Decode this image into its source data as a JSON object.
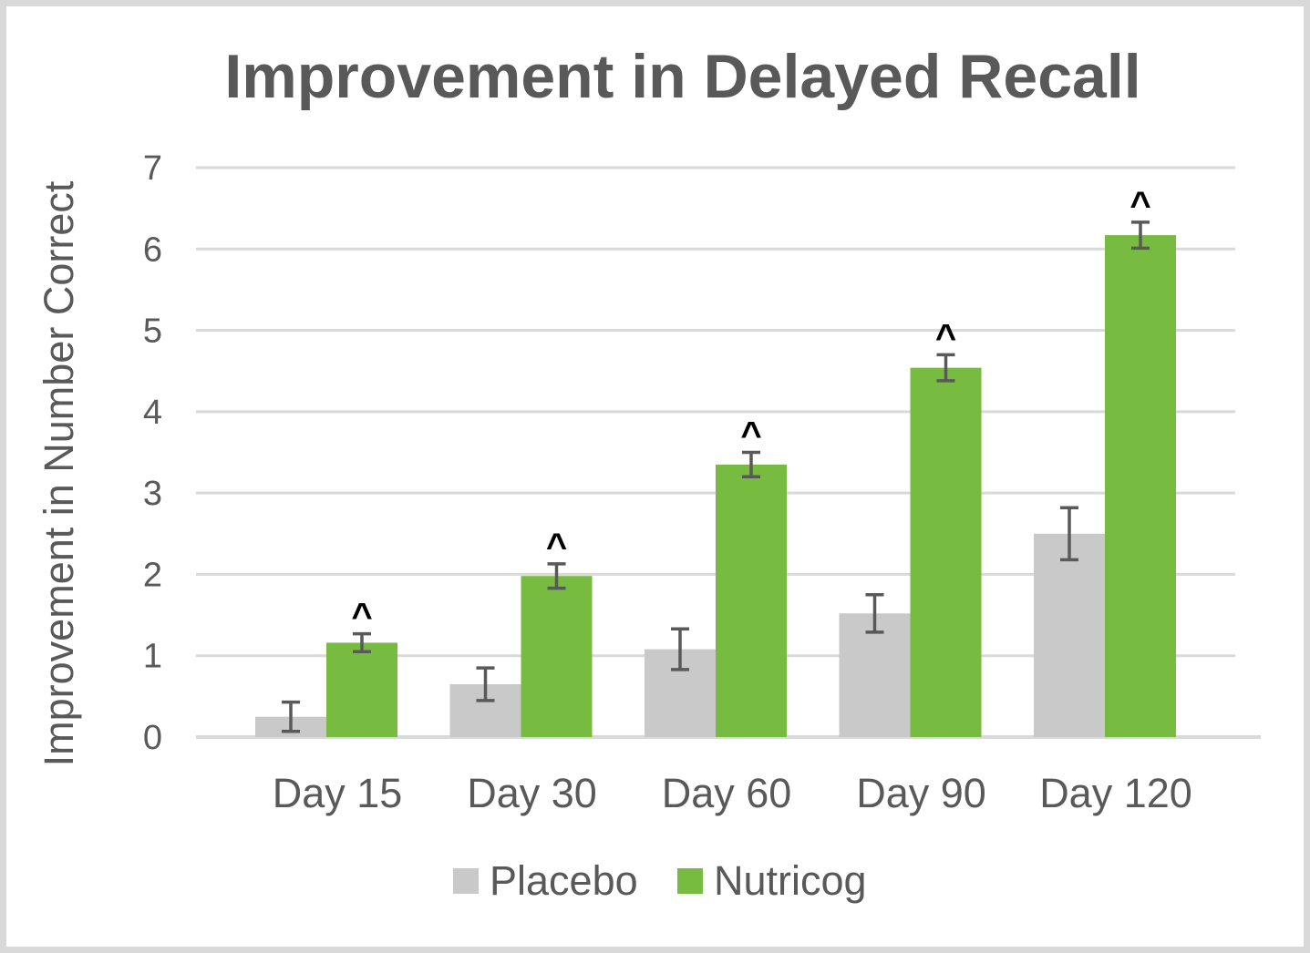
{
  "chart_data": {
    "type": "bar",
    "title": "Improvement in Delayed Recall",
    "ylabel": "Improvement in Number Correct",
    "xlabel": "",
    "ylim": [
      0,
      7
    ],
    "yticks": [
      "0",
      "1",
      "2",
      "3",
      "4",
      "5",
      "6",
      "7"
    ],
    "categories": [
      "Day 15",
      "Day 30",
      "Day 60",
      "Day 90",
      "Day 120"
    ],
    "series": [
      {
        "name": "Placebo",
        "color": "#c9c9c9",
        "values": [
          0.25,
          0.65,
          1.08,
          1.52,
          2.5
        ],
        "error": [
          0.18,
          0.2,
          0.25,
          0.23,
          0.32
        ]
      },
      {
        "name": "Nutricog",
        "color": "#77bc41",
        "values": [
          1.16,
          1.98,
          3.35,
          4.54,
          6.17
        ],
        "error": [
          0.11,
          0.15,
          0.15,
          0.16,
          0.16
        ]
      }
    ],
    "annotations": [
      "^",
      "^",
      "^",
      "^",
      "^"
    ],
    "grid": true,
    "legend": "bottom"
  }
}
